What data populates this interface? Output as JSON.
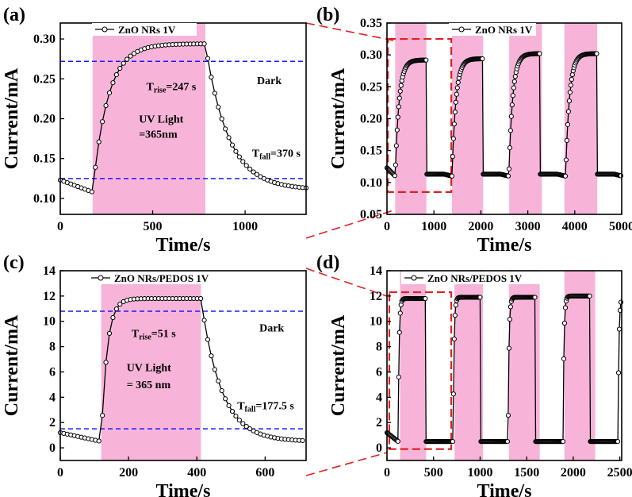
{
  "colors": {
    "light_band": "#f7b4d8",
    "threshold_line": "#1a1aff",
    "zoom_box": "#e02020",
    "marker_fill": "#ffffff",
    "curve": "#000000"
  },
  "chart_data": [
    {
      "id": "a",
      "panel_label": "(a)",
      "type": "line",
      "xlabel": "Time/s",
      "ylabel": "Current/mA",
      "xlim": [
        0,
        1330
      ],
      "ylim": [
        0.08,
        0.32
      ],
      "xticks": [
        0,
        500,
        1000
      ],
      "xtick_labels": [
        "0",
        "500",
        "1000"
      ],
      "yticks": [
        0.1,
        0.15,
        0.2,
        0.25,
        0.3
      ],
      "ytick_labels": [
        "0.10",
        "0.15",
        "0.20",
        "0.25",
        "0.30"
      ],
      "legend": "ZnO NRs  1V",
      "legend_position": "top-center",
      "light_periods": [
        [
          175,
          785
        ]
      ],
      "hlines": [
        0.272,
        0.125
      ],
      "annotations": {
        "rise": {
          "symbol": "T",
          "sub": "rise",
          "value": "=247 s"
        },
        "light_line1": "UV Light",
        "light_line2": "=365nm",
        "dark": "Dark",
        "fall": {
          "symbol": "T",
          "sub": "fall",
          "value": "=370 s"
        }
      },
      "curve": {
        "on_at": 175,
        "off_at": 785,
        "i_dark_start": 0.123,
        "i_dark_drop": 0.108,
        "i_peak": 0.294,
        "i_end": 0.111,
        "t_rise": 247,
        "t_fall": 370,
        "period": 0,
        "cycles": 1,
        "t_end": 1330
      }
    },
    {
      "id": "b",
      "panel_label": "(b)",
      "type": "line",
      "xlabel": "Time/s",
      "ylabel": "Current/mA",
      "xlim": [
        0,
        5000
      ],
      "ylim": [
        0.05,
        0.35
      ],
      "xticks": [
        0,
        1000,
        2000,
        3000,
        4000,
        5000
      ],
      "xtick_labels": [
        "0",
        "1000",
        "2000",
        "3000",
        "4000",
        "5000"
      ],
      "yticks": [
        0.05,
        0.1,
        0.15,
        0.2,
        0.25,
        0.3,
        0.35
      ],
      "ytick_labels": [
        "0.05",
        "0.10",
        "0.15",
        "0.20",
        "0.25",
        "0.30",
        "0.35"
      ],
      "legend": "ZnO NRs  1V",
      "legend_position": "top-right",
      "light_periods": [
        [
          175,
          840
        ],
        [
          1385,
          2050
        ],
        [
          2605,
          3300
        ],
        [
          3780,
          4480
        ]
      ],
      "zoom_box": {
        "x": [
          20,
          1370
        ],
        "y": [
          0.085,
          0.325
        ]
      },
      "curve": {
        "on_at": 175,
        "off_at": 840,
        "i_dark_start": 0.123,
        "i_dark_drop": 0.11,
        "i_peak": 0.294,
        "i_end": 0.113,
        "t_rise": 247,
        "t_fall": 370,
        "period": 1210,
        "cycles": 4,
        "peaks": [
          0.292,
          0.294,
          0.302,
          0.302
        ],
        "t_end": 5000
      }
    },
    {
      "id": "c",
      "panel_label": "(c)",
      "type": "line",
      "xlabel": "Time/s",
      "ylabel": "Current/mA",
      "xlim": [
        0,
        720
      ],
      "ylim": [
        -1,
        14
      ],
      "xticks": [
        0,
        200,
        400,
        600
      ],
      "xtick_labels": [
        "0",
        "200",
        "400",
        "600"
      ],
      "yticks": [
        0,
        2,
        4,
        6,
        8,
        10,
        12,
        14
      ],
      "ytick_labels": [
        "0",
        "2",
        "4",
        "6",
        "8",
        "10",
        "12",
        "14"
      ],
      "legend": "ZnO NRs/PEDOS  1V",
      "legend_position": "top-center",
      "light_periods": [
        [
          120,
          412
        ]
      ],
      "hlines": [
        10.8,
        1.5
      ],
      "annotations": {
        "rise": {
          "symbol": "T",
          "sub": "rise",
          "value": "=51 s"
        },
        "light_line1": "UV Light",
        "light_line2": "= 365 nm",
        "dark": "Dark",
        "fall": {
          "symbol": "T",
          "sub": "fall",
          "value": "=177.5 s"
        }
      },
      "curve": {
        "on_at": 120,
        "off_at": 412,
        "i_dark_start": 1.2,
        "i_dark_drop": 0.5,
        "i_peak": 11.8,
        "i_end": 0.5,
        "t_rise": 51,
        "t_fall": 177.5,
        "period": 0,
        "cycles": 1,
        "t_end": 720
      }
    },
    {
      "id": "d",
      "panel_label": "(d)",
      "type": "line",
      "xlabel": "Time/s",
      "ylabel": "Current/mA",
      "xlim": [
        0,
        2520
      ],
      "ylim": [
        -1,
        14
      ],
      "xticks": [
        0,
        500,
        1000,
        1500,
        2000,
        2500
      ],
      "xtick_labels": [
        "0",
        "500",
        "1000",
        "1500",
        "2000",
        "2500"
      ],
      "yticks": [
        0,
        2,
        4,
        6,
        8,
        10,
        12,
        14
      ],
      "ytick_labels": [
        "0",
        "2",
        "4",
        "6",
        "8",
        "10",
        "12",
        "14"
      ],
      "legend": "ZnO NRs/PEDOS  1V",
      "legend_position": "top-right",
      "light_periods": [
        [
          140,
          420
        ],
        [
          725,
          1030
        ],
        [
          1310,
          1640
        ],
        [
          1905,
          2235
        ]
      ],
      "zoom_box": {
        "x": [
          25,
          690
        ],
        "y": [
          -0.1,
          12.3
        ]
      },
      "curve": {
        "on_at": 120,
        "off_at": 412,
        "i_dark_start": 1.2,
        "i_dark_drop": 0.5,
        "i_peak": 11.8,
        "i_end": 0.5,
        "t_rise": 30,
        "t_fall": 85,
        "period": 590,
        "cycles": 4,
        "peaks": [
          11.8,
          11.9,
          11.9,
          12.0
        ],
        "t_end": 2520
      }
    }
  ]
}
